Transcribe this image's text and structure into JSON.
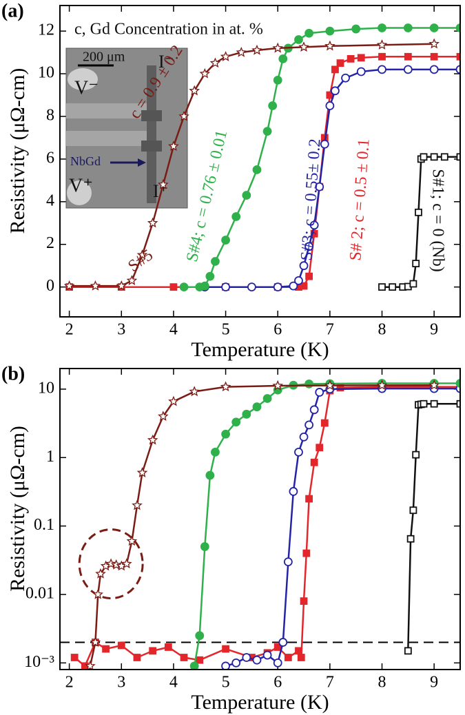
{
  "chart_data": [
    {
      "type": "line",
      "panel": "(a)",
      "x_label": "Temperature (K)",
      "y_label": "Resistivity (μΩ-cm)",
      "xlim": [
        1.82,
        9.5
      ],
      "ylim": [
        -1.4,
        13.2
      ],
      "xticks": [
        2,
        3,
        4,
        5,
        6,
        7,
        8,
        9
      ],
      "yticks": [
        0,
        2,
        4,
        6,
        8,
        10,
        12
      ],
      "log_y": false,
      "annotations": [
        "c, Gd Concentration in at. %",
        "c = 0.9 ± 0.2",
        "S#5",
        "S#4; c = 0.76 ± 0.01",
        "S#3; c = 0.55± 0.2",
        "S# 2; c = 0.5 ± 0.1",
        "S#1; c = 0 (Nb)"
      ],
      "inset": [
        "200 μm",
        "I⁻",
        "V⁻",
        "NbGd",
        "V⁺",
        "I⁺"
      ],
      "series": [
        {
          "color": "#111111",
          "marker": "open-square",
          "x": [
            8.0,
            8.2,
            8.4,
            8.5,
            8.6,
            8.65,
            8.7,
            8.75,
            8.8,
            9.0,
            9.2,
            9.5
          ],
          "values": [
            0,
            0,
            0,
            0.02,
            0.15,
            1.1,
            3.5,
            6.0,
            6.1,
            6.1,
            6.1,
            6.1
          ]
        },
        {
          "color": "#e3262b",
          "marker": "filled-square",
          "x": [
            2,
            3,
            4,
            5,
            6,
            6.4,
            6.5,
            6.6,
            6.7,
            6.8,
            6.9,
            7.0,
            7.1,
            7.2,
            7.4,
            7.6,
            8,
            8.5,
            9,
            9.5
          ],
          "values": [
            0,
            0,
            0,
            0,
            0,
            0,
            0.05,
            0.5,
            2.5,
            4.7,
            7.0,
            9.0,
            10.2,
            10.5,
            10.7,
            10.75,
            10.8,
            10.8,
            10.8,
            10.8
          ]
        },
        {
          "color": "#2323a8",
          "marker": "open-circle",
          "x": [
            4.6,
            5,
            5.5,
            6,
            6.3,
            6.4,
            6.5,
            6.6,
            6.7,
            6.8,
            6.9,
            7.0,
            7.1,
            7.3,
            7.6,
            8,
            8.5,
            9,
            9.5
          ],
          "values": [
            0,
            0,
            0,
            0,
            0.05,
            0.3,
            1.0,
            1.9,
            2.9,
            4.7,
            6.7,
            8.5,
            9.2,
            9.8,
            10.1,
            10.2,
            10.2,
            10.2,
            10.2
          ]
        },
        {
          "color": "#2fb04a",
          "marker": "filled-circle",
          "x": [
            4.2,
            4.5,
            4.6,
            4.7,
            4.8,
            5.0,
            5.2,
            5.4,
            5.6,
            5.8,
            5.9,
            6.0,
            6.1,
            6.2,
            6.4,
            6.6,
            7,
            7.5,
            8,
            8.5,
            9,
            9.5
          ],
          "values": [
            0,
            0,
            0.05,
            0.5,
            1.2,
            2.2,
            3.3,
            4.3,
            5.5,
            7.3,
            8.5,
            9.7,
            10.7,
            11.2,
            11.6,
            11.9,
            12.0,
            12.1,
            12.15,
            12.15,
            12.15,
            12.15
          ]
        },
        {
          "color": "#7a1b14",
          "marker": "open-star",
          "x": [
            2,
            2.5,
            3,
            3.2,
            3.4,
            3.6,
            3.8,
            4,
            4.2,
            4.4,
            4.6,
            4.8,
            5,
            5.3,
            5.6,
            6,
            6.5,
            7,
            8,
            9
          ],
          "values": [
            0.05,
            0.05,
            0.05,
            0.3,
            1.5,
            3.0,
            4.8,
            6.6,
            8.0,
            9.2,
            10.0,
            10.5,
            10.8,
            11.0,
            11.1,
            11.2,
            11.25,
            11.3,
            11.35,
            11.4
          ]
        }
      ]
    },
    {
      "type": "line",
      "panel": "(b)",
      "x_label": "Temperature (K)",
      "y_label": "Resistivity (μΩ-cm)",
      "xlim": [
        1.82,
        9.5
      ],
      "ylim": [
        0.0008,
        20
      ],
      "xticks": [
        2,
        3,
        4,
        5,
        6,
        7,
        8,
        9
      ],
      "yticks": [
        {
          "value": 0.001,
          "label": "10⁻³"
        },
        0.01,
        0.1,
        1,
        10
      ],
      "log_y": true,
      "threshold": 0.002,
      "series": [
        {
          "color": "#111111",
          "marker": "open-square",
          "x": [
            8.5,
            8.55,
            8.6,
            8.65,
            8.7,
            8.75,
            8.8,
            9,
            9.5
          ],
          "values": [
            0.0015,
            0.065,
            0.17,
            1.1,
            5.9,
            6.0,
            6.1,
            6.1,
            6.1
          ]
        },
        {
          "color": "#e3262b",
          "marker": "filled-square",
          "x": [
            2.1,
            2.3,
            2.5,
            2.7,
            3.0,
            3.3,
            3.6,
            3.9,
            4.2,
            4.5,
            5.0,
            5.5,
            5.8,
            6.0,
            6.2,
            6.4,
            6.45,
            6.5,
            6.55,
            6.6,
            6.7,
            6.8,
            6.9,
            7.0,
            7.2,
            8,
            9,
            9.5
          ],
          "values": [
            0.0012,
            0.0009,
            0.002,
            0.0016,
            0.0018,
            0.0012,
            0.0015,
            0.0017,
            0.0012,
            0.0011,
            0.0016,
            0.0012,
            0.0014,
            0.0017,
            0.0012,
            0.0015,
            0.0012,
            0.008,
            0.04,
            0.25,
            0.85,
            1.4,
            3.2,
            9.5,
            10.5,
            10.8,
            10.8,
            10.8
          ]
        },
        {
          "color": "#2323a8",
          "marker": "open-circle",
          "x": [
            5.0,
            5.2,
            5.4,
            5.6,
            5.8,
            6.0,
            6.1,
            6.2,
            6.3,
            6.4,
            6.5,
            6.6,
            6.7,
            6.8,
            7,
            8,
            9,
            9.5
          ],
          "values": [
            0.0009,
            0.001,
            0.0012,
            0.0011,
            0.0013,
            0.001,
            0.002,
            0.03,
            0.32,
            1.2,
            2.0,
            3.0,
            5.0,
            9.0,
            10,
            10.2,
            10.2,
            10.2
          ]
        },
        {
          "color": "#2fb04a",
          "marker": "filled-circle",
          "x": [
            4.4,
            4.5,
            4.6,
            4.7,
            4.8,
            5.0,
            5.2,
            5.4,
            5.6,
            5.8,
            6.0,
            6.3,
            6.6,
            7,
            8,
            9,
            9.5
          ],
          "values": [
            0.0009,
            0.0025,
            0.05,
            0.55,
            1.2,
            2.2,
            3.3,
            4.3,
            5.5,
            7.3,
            9.7,
            11.4,
            11.9,
            12.0,
            12.15,
            12.15,
            12.15
          ]
        },
        {
          "color": "#7a1b14",
          "marker": "open-star",
          "x": [
            2.4,
            2.5,
            2.55,
            2.6,
            2.7,
            2.8,
            2.9,
            3.0,
            3.1,
            3.2,
            3.3,
            3.4,
            3.6,
            3.8,
            4.0,
            4.4,
            5.0,
            6,
            7,
            8,
            9
          ],
          "values": [
            0.0009,
            0.002,
            0.01,
            0.02,
            0.026,
            0.028,
            0.027,
            0.026,
            0.028,
            0.06,
            0.2,
            0.6,
            1.8,
            4.0,
            6.6,
            9.2,
            10.8,
            11.2,
            11.3,
            11.35,
            11.4
          ]
        }
      ]
    }
  ]
}
